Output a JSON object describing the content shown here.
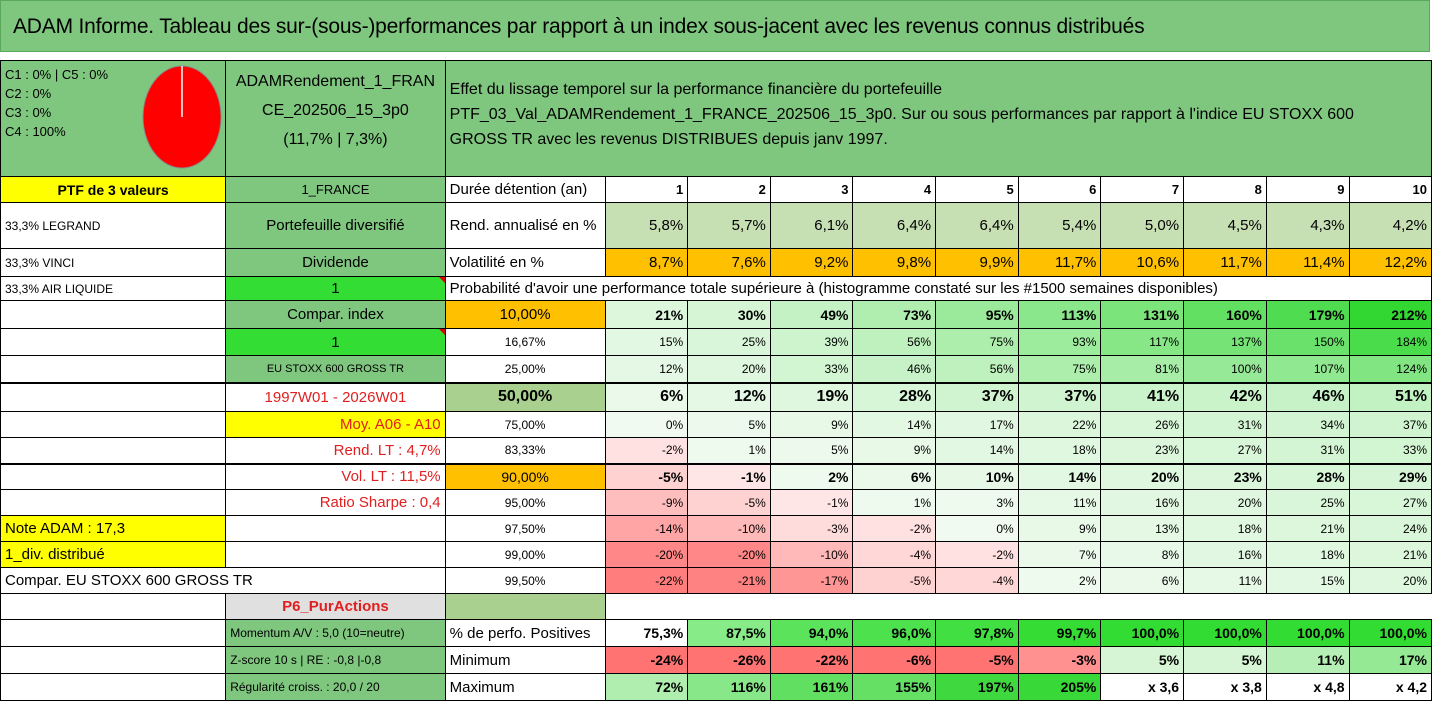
{
  "title": "ADAM Informe. Tableau des sur-(sous-)performances par rapport à un index sous-jacent avec les revenus connus distribués",
  "composition": [
    "C1 : 0% | C5 : 0%",
    "C2 : 0%",
    "C3 : 0%",
    "C4 : 100%"
  ],
  "pie_color": "#ff0000",
  "portfolio_name": [
    "ADAMRendement_1_FRAN",
    "CE_202506_15_3p0",
    "(11,7% | 7,3%)"
  ],
  "description": [
    "Effet du lissage temporel sur la performance financière du portefeuille",
    "PTF_03_Val_ADAMRendement_1_FRANCE_202506_15_3p0. Sur ou sous performances par rapport à l'indice EU STOXX 600",
    "GROSS TR avec les revenus DISTRIBUES depuis janv 1997."
  ],
  "left": {
    "ptf": "PTF de 3 valeurs",
    "holdings": [
      "33,3% LEGRAND",
      "33,3% VINCI",
      "33,3% AIR LIQUIDE"
    ],
    "momentum": "Momentum A/V : 5,0 (10=neutre)",
    "zscore": "Z-score 10 s | RE : -0,8 |-0,8",
    "regularite": "Régularité croiss. : 20,0 / 20"
  },
  "mid": {
    "france": "1_FRANCE",
    "diversifie": "Portefeuille diversifié",
    "dividende": "Dividende",
    "one_a": "1",
    "compar_index": "Compar. index",
    "one_b": "1",
    "index_name": "EU STOXX 600 GROSS TR",
    "period": "1997W01 - 2026W01",
    "moy": "Moy. A06 - A10",
    "rend_lt": "Rend. LT : 4,7%",
    "vol_lt": "Vol. LT : 11,5%",
    "sharpe": "Ratio Sharpe : 0,4",
    "note": "Note ADAM : 17,3",
    "div": "1_div. distribué",
    "compar": "Compar. EU STOXX 600 GROSS TR",
    "p6": "P6_PurActions"
  },
  "table": {
    "duree_label": "Durée détention (an)",
    "years": [
      "1",
      "2",
      "3",
      "4",
      "5",
      "6",
      "7",
      "8",
      "9",
      "10"
    ],
    "rend_label": "Rend. annualisé en %",
    "rend": [
      "5,8%",
      "5,7%",
      "6,1%",
      "6,4%",
      "6,4%",
      "5,4%",
      "5,0%",
      "4,5%",
      "4,3%",
      "4,2%"
    ],
    "vol_label": "Volatilité en %",
    "vol": [
      "8,7%",
      "7,6%",
      "9,2%",
      "9,8%",
      "9,9%",
      "11,7%",
      "10,6%",
      "11,7%",
      "11,4%",
      "12,2%"
    ],
    "proba_title": "Probabilité d'avoir une performance totale supérieure à (histogramme constaté sur les #1500 semaines disponibles)",
    "rows": [
      {
        "p": "10,00%",
        "v": [
          "21%",
          "30%",
          "49%",
          "73%",
          "95%",
          "113%",
          "131%",
          "160%",
          "179%",
          "212%"
        ]
      },
      {
        "p": "16,67%",
        "v": [
          "15%",
          "25%",
          "39%",
          "56%",
          "75%",
          "93%",
          "117%",
          "137%",
          "150%",
          "184%"
        ]
      },
      {
        "p": "25,00%",
        "v": [
          "12%",
          "20%",
          "33%",
          "46%",
          "56%",
          "75%",
          "81%",
          "100%",
          "107%",
          "124%"
        ]
      },
      {
        "p": "50,00%",
        "v": [
          "6%",
          "12%",
          "19%",
          "28%",
          "37%",
          "37%",
          "41%",
          "42%",
          "46%",
          "51%"
        ]
      },
      {
        "p": "75,00%",
        "v": [
          "0%",
          "5%",
          "9%",
          "14%",
          "17%",
          "22%",
          "26%",
          "31%",
          "34%",
          "37%"
        ]
      },
      {
        "p": "83,33%",
        "v": [
          "-2%",
          "1%",
          "5%",
          "9%",
          "14%",
          "18%",
          "23%",
          "27%",
          "31%",
          "33%"
        ]
      },
      {
        "p": "90,00%",
        "v": [
          "-5%",
          "-1%",
          "2%",
          "6%",
          "10%",
          "14%",
          "20%",
          "23%",
          "28%",
          "29%"
        ]
      },
      {
        "p": "95,00%",
        "v": [
          "-9%",
          "-5%",
          "-1%",
          "1%",
          "3%",
          "11%",
          "16%",
          "20%",
          "25%",
          "27%"
        ]
      },
      {
        "p": "97,50%",
        "v": [
          "-14%",
          "-10%",
          "-3%",
          "-2%",
          "0%",
          "9%",
          "13%",
          "18%",
          "21%",
          "24%"
        ]
      },
      {
        "p": "99,00%",
        "v": [
          "-20%",
          "-20%",
          "-10%",
          "-4%",
          "-2%",
          "7%",
          "8%",
          "16%",
          "18%",
          "21%"
        ]
      },
      {
        "p": "99,50%",
        "v": [
          "-22%",
          "-21%",
          "-17%",
          "-5%",
          "-4%",
          "2%",
          "6%",
          "11%",
          "15%",
          "20%"
        ]
      }
    ],
    "pos_label": "% de perfo. Positives",
    "pos": [
      "75,3%",
      "87,5%",
      "94,0%",
      "96,0%",
      "97,8%",
      "99,7%",
      "100,0%",
      "100,0%",
      "100,0%",
      "100,0%"
    ],
    "min_label": "Minimum",
    "min": [
      "-24%",
      "-26%",
      "-22%",
      "-6%",
      "-5%",
      "-3%",
      "5%",
      "5%",
      "11%",
      "17%"
    ],
    "max_label": "Maximum",
    "max": [
      "72%",
      "116%",
      "161%",
      "155%",
      "197%",
      "205%",
      "x 3,6",
      "x 3,8",
      "x 4,8",
      "x 4,2"
    ]
  }
}
